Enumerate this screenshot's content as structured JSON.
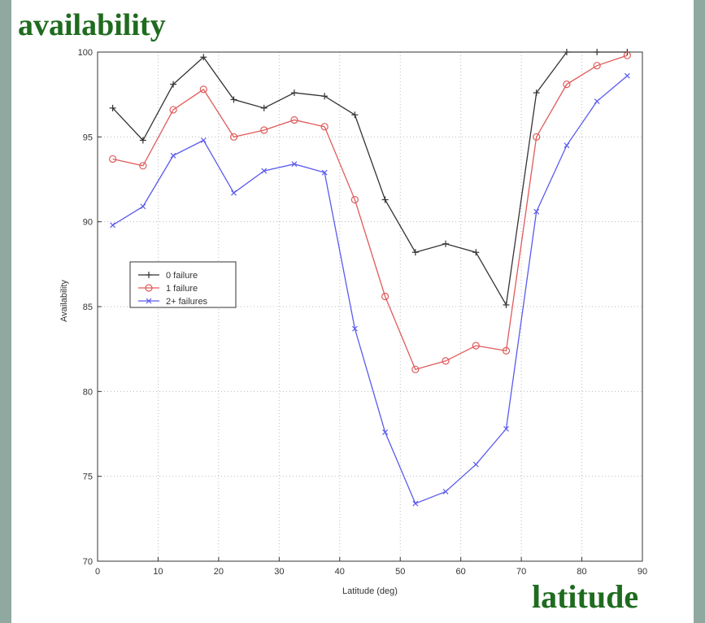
{
  "slide": {
    "y_caption": "availability",
    "x_caption": "latitude",
    "colors": {
      "caption": "#1f6b1f",
      "frame": "#8fa8a0"
    }
  },
  "chart_data": {
    "type": "line",
    "xlabel": "Latitude (deg)",
    "ylabel": "Availability",
    "xlim": [
      0,
      90
    ],
    "ylim": [
      70,
      100
    ],
    "xticks": [
      0,
      10,
      20,
      30,
      40,
      50,
      60,
      70,
      80,
      90
    ],
    "yticks": [
      70,
      75,
      80,
      85,
      90,
      95,
      100
    ],
    "grid": true,
    "legend_position": "middle-left",
    "x": [
      2.5,
      7.5,
      12.5,
      17.5,
      22.5,
      27.5,
      32.5,
      37.5,
      42.5,
      47.5,
      52.5,
      57.5,
      62.5,
      67.5,
      72.5,
      77.5,
      82.5,
      87.5
    ],
    "series": [
      {
        "name": "0 failure",
        "color": "#333333",
        "marker": "plus",
        "values": [
          96.7,
          94.8,
          98.1,
          99.7,
          97.2,
          96.7,
          97.6,
          97.4,
          96.3,
          91.3,
          88.2,
          88.7,
          88.2,
          85.1,
          97.6,
          100.0,
          100.0,
          100.0
        ]
      },
      {
        "name": "1 failure",
        "color": "#e05a5a",
        "marker": "circle",
        "values": [
          93.7,
          93.3,
          96.6,
          97.8,
          95.0,
          95.4,
          96.0,
          95.6,
          91.3,
          85.6,
          81.3,
          81.8,
          82.7,
          82.4,
          95.0,
          98.1,
          99.2,
          99.8
        ]
      },
      {
        "name": "2+ failures",
        "color": "#5a5aee",
        "marker": "x",
        "values": [
          89.8,
          90.9,
          93.9,
          94.8,
          91.7,
          93.0,
          93.4,
          92.9,
          83.7,
          77.6,
          73.4,
          74.1,
          75.7,
          77.8,
          90.6,
          94.5,
          97.1,
          98.6
        ]
      }
    ]
  }
}
